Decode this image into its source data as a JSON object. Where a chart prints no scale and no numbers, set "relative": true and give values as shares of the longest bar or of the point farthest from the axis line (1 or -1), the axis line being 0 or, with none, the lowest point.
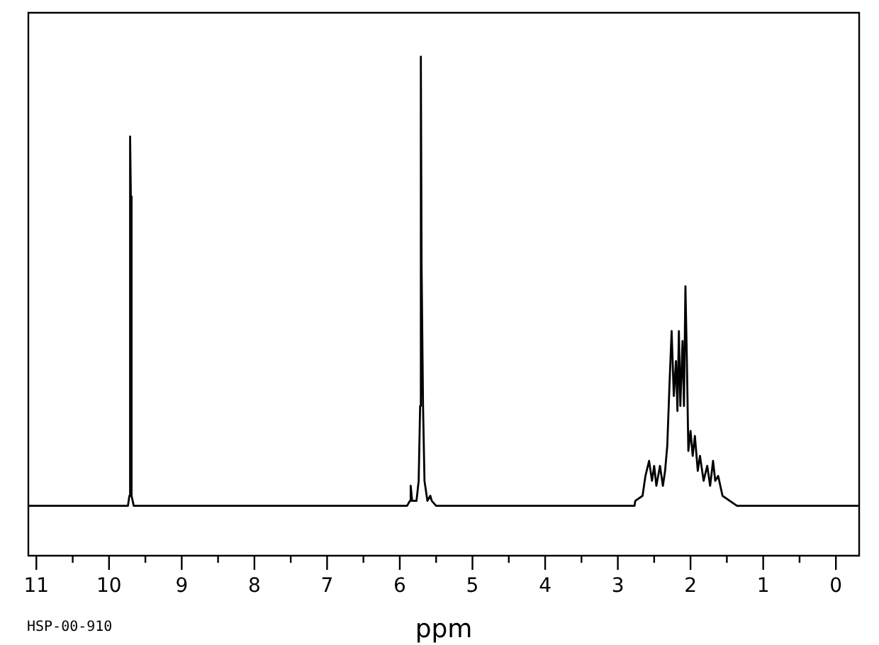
{
  "chart_data": {
    "type": "line",
    "relative": true,
    "xlabel": "ppm",
    "annotations": [
      "HSP-00-910"
    ],
    "xlim": [
      11.11,
      -0.32
    ],
    "xticks": [
      11,
      {
        "value": 10.5,
        "label": null
      },
      10,
      {
        "value": 9.5,
        "label": null
      },
      9,
      {
        "value": 8.5,
        "label": null
      },
      8,
      {
        "value": 7.5,
        "label": null
      },
      7,
      {
        "value": 6.5,
        "label": null
      },
      6,
      {
        "value": 5.5,
        "label": null
      },
      5,
      {
        "value": 4.5,
        "label": null
      },
      4,
      {
        "value": 3.5,
        "label": null
      },
      3,
      {
        "value": 2.5,
        "label": null
      },
      2,
      {
        "value": 1.5,
        "label": null
      },
      1,
      {
        "value": 0.5,
        "label": null
      },
      0
    ],
    "marker": "none",
    "color": "#000000",
    "x": [
      11.1,
      10.5,
      10.0,
      9.8,
      9.74,
      9.72,
      9.71,
      9.7,
      9.69,
      9.66,
      9.0,
      8.0,
      7.0,
      6.0,
      5.9,
      5.86,
      5.85,
      5.83,
      5.77,
      5.74,
      5.72,
      5.71,
      5.7,
      5.69,
      5.68,
      5.66,
      5.62,
      5.58,
      5.56,
      5.5,
      5.0,
      4.0,
      3.0,
      2.77,
      2.76,
      2.66,
      2.62,
      2.57,
      2.53,
      2.5,
      2.47,
      2.42,
      2.38,
      2.35,
      2.32,
      2.29,
      2.26,
      2.23,
      2.2,
      2.18,
      2.16,
      2.14,
      2.11,
      2.09,
      2.07,
      2.05,
      2.03,
      2.0,
      1.97,
      1.94,
      1.9,
      1.87,
      1.82,
      1.77,
      1.73,
      1.69,
      1.66,
      1.62,
      1.56,
      1.46,
      1.36,
      1.0,
      0.5,
      0.0,
      -0.3
    ],
    "values": [
      0.1,
      0.1,
      0.1,
      0.1,
      0.1,
      0.12,
      0.84,
      0.72,
      0.12,
      0.1,
      0.1,
      0.1,
      0.1,
      0.1,
      0.1,
      0.11,
      0.14,
      0.11,
      0.11,
      0.15,
      0.3,
      1.0,
      0.58,
      0.58,
      0.3,
      0.15,
      0.11,
      0.12,
      0.11,
      0.1,
      0.1,
      0.1,
      0.1,
      0.1,
      0.11,
      0.12,
      0.16,
      0.19,
      0.15,
      0.18,
      0.14,
      0.18,
      0.14,
      0.17,
      0.22,
      0.34,
      0.45,
      0.32,
      0.39,
      0.29,
      0.45,
      0.3,
      0.43,
      0.3,
      0.54,
      0.39,
      0.21,
      0.25,
      0.2,
      0.24,
      0.17,
      0.2,
      0.15,
      0.18,
      0.14,
      0.19,
      0.15,
      0.16,
      0.12,
      0.11,
      0.1,
      0.1,
      0.1,
      0.1,
      0.1
    ]
  }
}
